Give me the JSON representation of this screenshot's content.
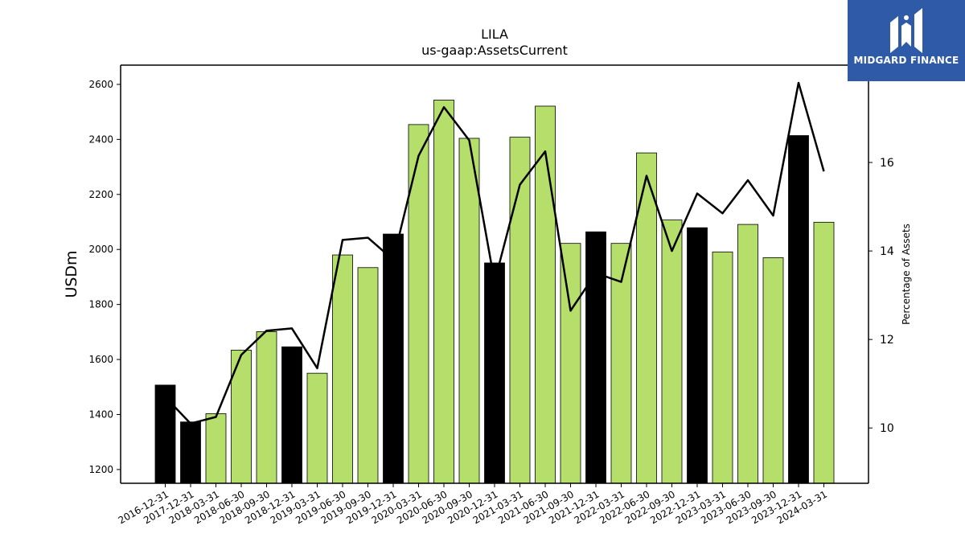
{
  "chart_data": {
    "type": "bar",
    "title": "LILA",
    "subtitle": "us-gaap:AssetsCurrent",
    "ylabel": "USDm",
    "y2label": "Percentage of Assets",
    "ylim": [
      1150,
      2670
    ],
    "y2lim": [
      8.75,
      18.2
    ],
    "yticks": [
      1200,
      1400,
      1600,
      1800,
      2000,
      2200,
      2400,
      2600
    ],
    "y2ticks": [
      10,
      12,
      14,
      16
    ],
    "categories": [
      "2016-12-31",
      "2017-12-31",
      "2018-03-31",
      "2018-06-30",
      "2018-09-30",
      "2018-12-31",
      "2019-03-31",
      "2019-06-30",
      "2019-09-30",
      "2019-12-31",
      "2020-03-31",
      "2020-06-30",
      "2020-09-30",
      "2020-12-31",
      "2021-03-31",
      "2021-06-30",
      "2021-09-30",
      "2021-12-31",
      "2022-03-31",
      "2022-06-30",
      "2022-09-30",
      "2022-12-31",
      "2023-03-31",
      "2023-06-30",
      "2023-09-30",
      "2023-12-31",
      "2024-03-31"
    ],
    "series": [
      {
        "type": "bar",
        "values": [
          1507,
          1373,
          1403,
          1634,
          1701,
          1646,
          1550,
          1980,
          1934,
          2056,
          2454,
          2543,
          2404,
          1951,
          2408,
          2521,
          2022,
          2064,
          2022,
          2351,
          2107,
          2079,
          1991,
          2091,
          1970,
          2414,
          2099
        ],
        "bar_colors": [
          "#000000",
          "#000000",
          "#b5de6b",
          "#b5de6b",
          "#b5de6b",
          "#000000",
          "#b5de6b",
          "#b5de6b",
          "#b5de6b",
          "#000000",
          "#b5de6b",
          "#b5de6b",
          "#b5de6b",
          "#000000",
          "#b5de6b",
          "#b5de6b",
          "#b5de6b",
          "#000000",
          "#b5de6b",
          "#b5de6b",
          "#b5de6b",
          "#000000",
          "#b5de6b",
          "#b5de6b",
          "#b5de6b",
          "#000000",
          "#b5de6b"
        ]
      },
      {
        "type": "line",
        "axis": "right",
        "color": "#000000",
        "values": [
          10.7,
          10.1,
          10.25,
          11.65,
          12.2,
          12.25,
          11.35,
          14.25,
          14.3,
          13.8,
          16.15,
          17.25,
          16.5,
          13.3,
          15.5,
          16.25,
          12.65,
          13.5,
          13.3,
          15.7,
          14.0,
          15.3,
          14.85,
          15.6,
          14.8,
          17.8,
          15.8
        ]
      }
    ],
    "colors": {
      "annual": "#000000",
      "quarterly": "#b5de6b",
      "line": "#000000"
    },
    "legend": "none",
    "grid": false
  },
  "logo": {
    "text": "MIDGARD FINANCE",
    "background": "#2f5aa8"
  }
}
